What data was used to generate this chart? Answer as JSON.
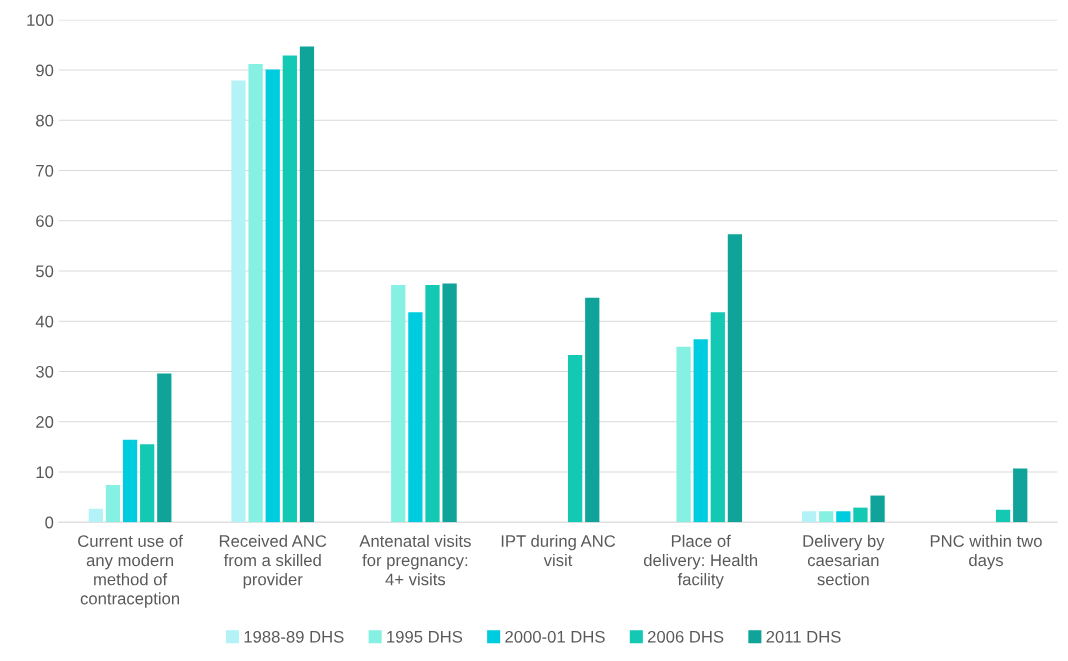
{
  "chart_data": {
    "type": "bar",
    "categories": [
      "Current use of any modern method of contraception",
      "Received ANC from a skilled provider",
      "Antenatal visits for pregnancy: 4+ visits",
      "IPT during ANC visit",
      "Place of delivery: Health facility",
      "Delivery by caesarian section",
      "PNC within two days"
    ],
    "series": [
      {
        "name": "1988-89 DHS",
        "color": "#b3f3f8",
        "values": [
          2.7,
          87.9,
          null,
          null,
          null,
          2.2,
          null
        ]
      },
      {
        "name": "1995 DHS",
        "color": "#86f0e3",
        "values": [
          7.4,
          91.2,
          47.2,
          null,
          34.9,
          2.2,
          null
        ]
      },
      {
        "name": "2000-01 DHS",
        "color": "#00cce0",
        "values": [
          16.4,
          90.1,
          41.8,
          null,
          36.4,
          2.2,
          null
        ]
      },
      {
        "name": "2006 DHS",
        "color": "#14c9b4",
        "values": [
          15.5,
          92.9,
          47.2,
          33.3,
          41.8,
          2.9,
          2.5
        ]
      },
      {
        "name": "2011 DHS",
        "color": "#10a39a",
        "values": [
          29.6,
          94.7,
          47.5,
          44.7,
          57.3,
          5.3,
          10.7
        ]
      }
    ],
    "ylim": [
      0,
      100
    ],
    "yticks": [
      0,
      10,
      20,
      30,
      40,
      50,
      60,
      70,
      80,
      90,
      100
    ],
    "grid": "y",
    "legend": "bottom"
  }
}
